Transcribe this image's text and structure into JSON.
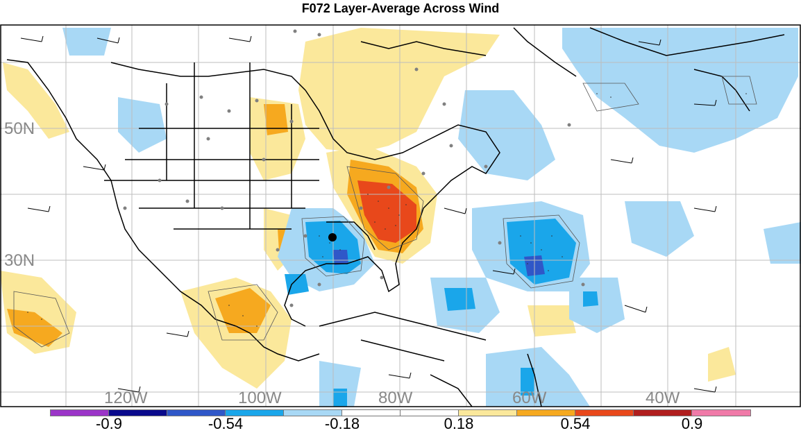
{
  "title": "F072 Layer-Average Across Wind",
  "lon_labels": [
    "120W",
    "100W",
    "80W",
    "60W",
    "40W"
  ],
  "lat_labels": [
    "50N",
    "30N"
  ],
  "colorbar": {
    "colors": [
      "#9b35c8",
      "#0a0a8c",
      "#2f57c8",
      "#1aa6ea",
      "#a8d8f5",
      "#ffffff",
      "#ffffff",
      "#fbe89b",
      "#f6a91f",
      "#e8481b",
      "#b01e1e",
      "#f07aa8"
    ],
    "tick_labels": [
      "-0.9",
      "-0.54",
      "-0.18",
      "0.18",
      "0.54",
      "0.9"
    ],
    "tick_values": [
      -0.9,
      -0.54,
      -0.18,
      0.18,
      0.54,
      0.9
    ]
  },
  "station_marker": "station-dot-icon"
}
